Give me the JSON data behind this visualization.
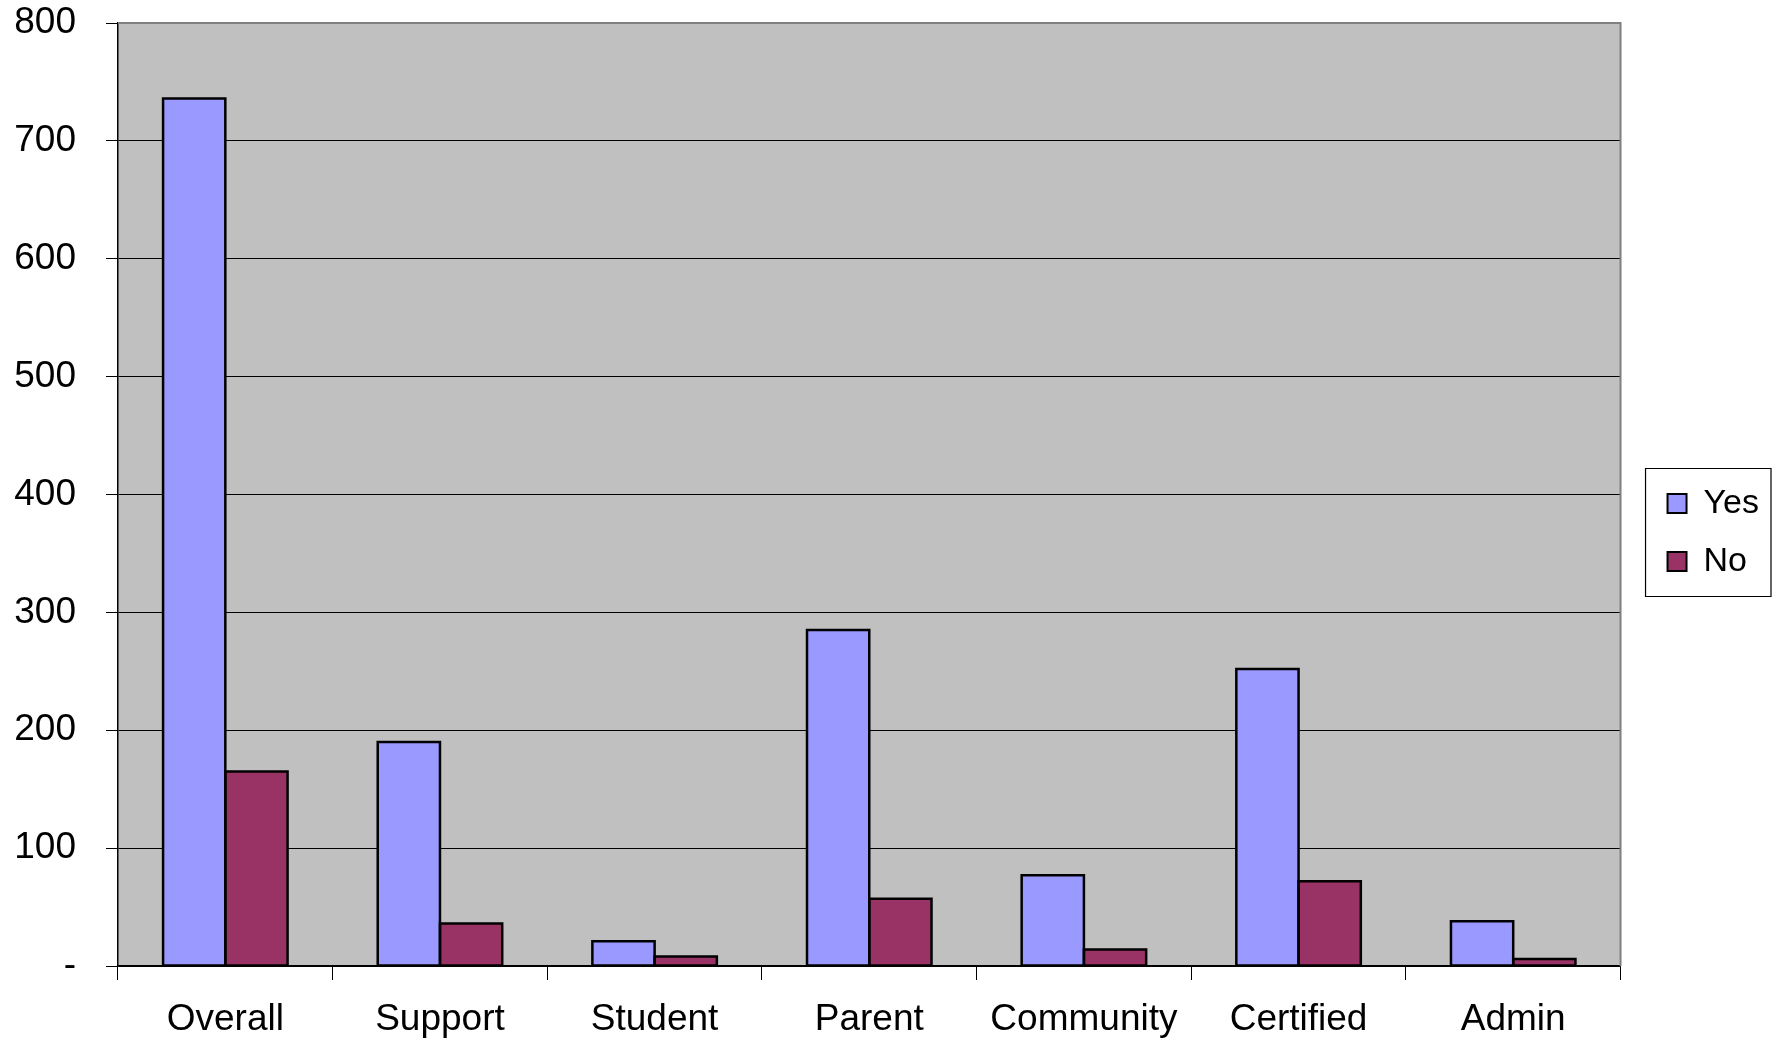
{
  "chart_data": {
    "type": "bar",
    "categories": [
      "Overall",
      "Support",
      "Student",
      "Parent",
      "Community",
      "Certified",
      "Admin"
    ],
    "series": [
      {
        "name": "Yes",
        "color": "#9999ff",
        "values": [
          736,
          190,
          21,
          285,
          77,
          252,
          38
        ]
      },
      {
        "name": "No",
        "color": "#993366",
        "values": [
          165,
          36,
          8,
          57,
          14,
          72,
          6
        ]
      }
    ],
    "ylim": [
      0,
      800
    ],
    "yticks": [
      {
        "value": 0,
        "label": "-"
      },
      100,
      200,
      300,
      400,
      500,
      600,
      700,
      800
    ],
    "grid": "y",
    "legend": "right"
  }
}
